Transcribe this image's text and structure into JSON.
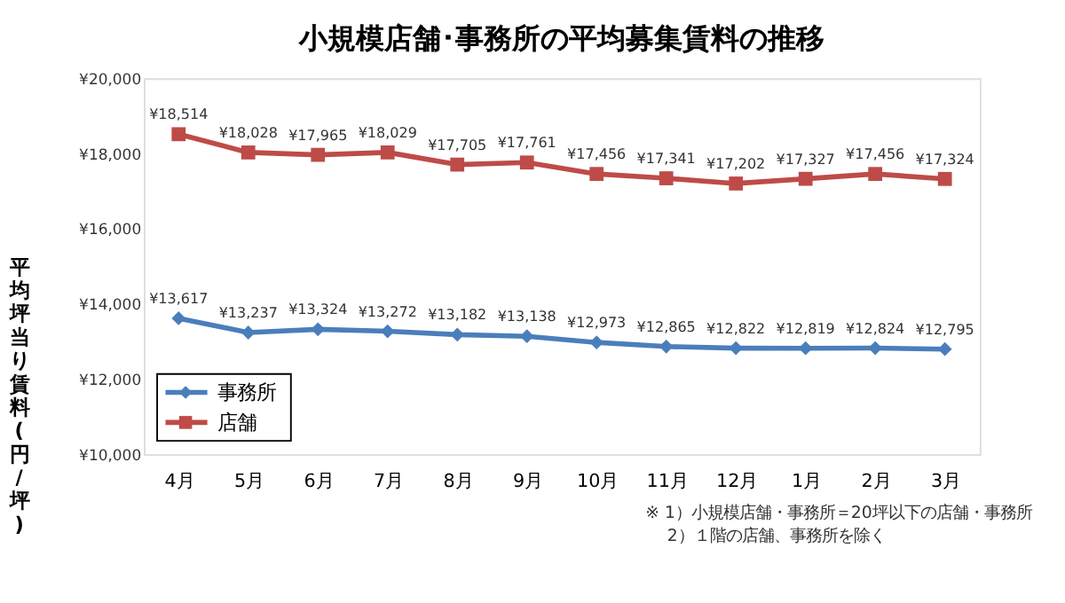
{
  "chart_data": {
    "type": "line",
    "title": "小規模店舗･事務所の平均募集賃料の推移",
    "ylabel": "平均坪当り賃料(円/坪)",
    "categories": [
      "4月",
      "5月",
      "6月",
      "7月",
      "8月",
      "9月",
      "10月",
      "11月",
      "12月",
      "1月",
      "2月",
      "3月"
    ],
    "series": [
      {
        "name": "事務所",
        "color": "#4a7ebb",
        "marker": "diamond",
        "values": [
          13617,
          13237,
          13324,
          13272,
          13182,
          13138,
          12973,
          12865,
          12822,
          12819,
          12824,
          12795
        ],
        "value_labels": [
          "¥13,617",
          "¥13,237",
          "¥13,324",
          "¥13,272",
          "¥13,182",
          "¥13,138",
          "¥12,973",
          "¥12,865",
          "¥12,822",
          "¥12,819",
          "¥12,824",
          "¥12,795"
        ]
      },
      {
        "name": "店舗",
        "color": "#be4b48",
        "marker": "square",
        "values": [
          18514,
          18028,
          17965,
          18029,
          17705,
          17761,
          17456,
          17341,
          17202,
          17327,
          17456,
          17324
        ],
        "value_labels": [
          "¥18,514",
          "¥18,028",
          "¥17,965",
          "¥18,029",
          "¥17,705",
          "¥17,761",
          "¥17,456",
          "¥17,341",
          "¥17,202",
          "¥17,327",
          "¥17,456",
          "¥17,324"
        ]
      }
    ],
    "ylim": [
      10000,
      20000
    ],
    "yticks": [
      {
        "value": 10000,
        "label": "¥10,000"
      },
      {
        "value": 12000,
        "label": "¥12,000"
      },
      {
        "value": 14000,
        "label": "¥14,000"
      },
      {
        "value": 16000,
        "label": "¥16,000"
      },
      {
        "value": 18000,
        "label": "¥18,000"
      },
      {
        "value": 20000,
        "label": "¥20,000"
      }
    ],
    "grid": false,
    "legend": "bottom left",
    "line_style": "solid",
    "annotations": [
      "※ 1）小規模店舗・事務所＝20坪以下の店舗・事務所",
      "2）１階の店舗、事務所を除く"
    ]
  }
}
